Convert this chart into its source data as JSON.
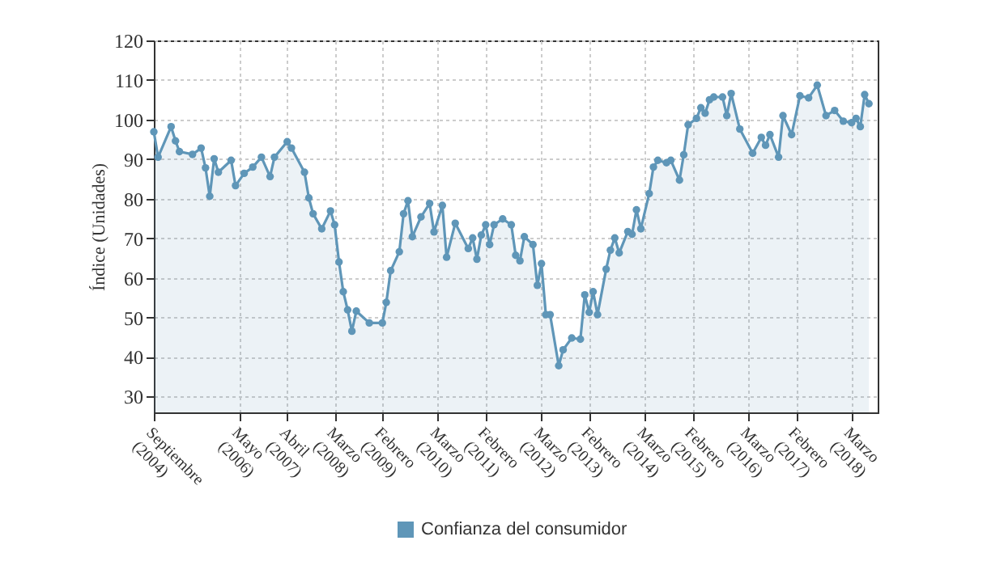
{
  "chart_data": {
    "type": "area",
    "ylabel": "Índice (Unidades)",
    "x": [
      "2004-09",
      "2004-10",
      "2005-01",
      "2005-02",
      "2005-03",
      "2005-06",
      "2005-08",
      "2005-09",
      "2005-10",
      "2005-11",
      "2005-12",
      "2006-03",
      "2006-04",
      "2006-06",
      "2006-08",
      "2006-10",
      "2006-12",
      "2007-01",
      "2007-04",
      "2007-05",
      "2007-08",
      "2007-09",
      "2007-10",
      "2007-12",
      "2008-02",
      "2008-03",
      "2008-04",
      "2008-05",
      "2008-06",
      "2008-07",
      "2008-08",
      "2008-11",
      "2009-02",
      "2009-03",
      "2009-04",
      "2009-06",
      "2009-07",
      "2009-08",
      "2009-09",
      "2009-11",
      "2010-01",
      "2010-02",
      "2010-04",
      "2010-05",
      "2010-07",
      "2010-10",
      "2010-11",
      "2010-12",
      "2011-01",
      "2011-02",
      "2011-03",
      "2011-04",
      "2011-06",
      "2011-08",
      "2011-09",
      "2011-10",
      "2011-11",
      "2012-01",
      "2012-02",
      "2012-03",
      "2012-04",
      "2012-05",
      "2012-07",
      "2012-08",
      "2012-10",
      "2012-12",
      "2013-01",
      "2013-02",
      "2013-03",
      "2013-04",
      "2013-06",
      "2013-07",
      "2013-08",
      "2013-09",
      "2013-11",
      "2013-12",
      "2014-01",
      "2014-02",
      "2014-04",
      "2014-05",
      "2014-06",
      "2014-08",
      "2014-09",
      "2014-11",
      "2014-12",
      "2015-01",
      "2015-03",
      "2015-04",
      "2015-05",
      "2015-06",
      "2015-07",
      "2015-09",
      "2015-10",
      "2015-11",
      "2016-01",
      "2016-04",
      "2016-06",
      "2016-07",
      "2016-08",
      "2016-10",
      "2016-11",
      "2017-01",
      "2017-03",
      "2017-05",
      "2017-07",
      "2017-09",
      "2017-11",
      "2018-01",
      "2018-03",
      "2018-04",
      "2018-05",
      "2018-06",
      "2018-07"
    ],
    "series": [
      {
        "name": "Confianza del consumidor",
        "color": "#5f96b8",
        "values": [
          96.9,
          90.5,
          98.2,
          94.6,
          91.9,
          91.2,
          92.8,
          87.8,
          80.6,
          90.1,
          86.7,
          89.7,
          83.3,
          86.4,
          88,
          90.5,
          85.6,
          90.5,
          94.4,
          92.8,
          86.7,
          80.2,
          76.2,
          72.4,
          76.9,
          73.4,
          64,
          56.5,
          51.9,
          46.5,
          51.6,
          48.6,
          48.6,
          53.8,
          61.8,
          66.6,
          76.2,
          79.5,
          70.4,
          75.4,
          78.8,
          71.6,
          78.3,
          65.2,
          73.8,
          67.4,
          70.1,
          64.7,
          70.8,
          73.4,
          68.4,
          73.4,
          74.9,
          73.4,
          65.7,
          64.3,
          70.4,
          68.4,
          58.1,
          63.6,
          50.7,
          50.7,
          37.8,
          41.8,
          44.8,
          44.5,
          55.7,
          51.3,
          56.5,
          50.7,
          62.2,
          67,
          70.1,
          66.3,
          71.7,
          71,
          77.2,
          72.4,
          81.3,
          88,
          89.7,
          89.1,
          89.7,
          84.7,
          91.1,
          98.7,
          100.3,
          103,
          101.6,
          105,
          105.7,
          105.7,
          101,
          106.6,
          97.6,
          91.5,
          95.5,
          93.5,
          96.2,
          90.5,
          101,
          96.2,
          106,
          105.5,
          108.7,
          101,
          102.3,
          99.6,
          99.2,
          100.3,
          98.2,
          106.3,
          104
        ]
      }
    ],
    "xlim": [
      "2004-09",
      "2018-09"
    ],
    "xticks": [
      {
        "value": "2004-09",
        "label": "Septiembre (2004)"
      },
      {
        "value": "2006-05",
        "label": "Mayo (2006)"
      },
      {
        "value": "2007-04",
        "label": "Abril (2007)"
      },
      {
        "value": "2008-03",
        "label": "Marzo (2008)"
      },
      {
        "value": "2009-02",
        "label": "Febrero (2009)"
      },
      {
        "value": "2010-03",
        "label": "Marzo (2010)"
      },
      {
        "value": "2011-02",
        "label": "Febrero (2011)"
      },
      {
        "value": "2012-03",
        "label": "Marzo (2012)"
      },
      {
        "value": "2013-02",
        "label": "Febrero (2013)"
      },
      {
        "value": "2014-03",
        "label": "Marzo (2014)"
      },
      {
        "value": "2015-02",
        "label": "Febrero (2015)"
      },
      {
        "value": "2016-03",
        "label": "Marzo (2016)"
      },
      {
        "value": "2017-02",
        "label": "Febrero (2017)"
      },
      {
        "value": "2018-03",
        "label": "Marzo (2018)"
      }
    ],
    "ylim": [
      26,
      120
    ],
    "yticks": [
      30,
      40,
      50,
      60,
      70,
      80,
      90,
      100,
      110,
      120
    ],
    "grid": true,
    "legend": "bottom",
    "marker": "circle",
    "line_style": "solid"
  }
}
